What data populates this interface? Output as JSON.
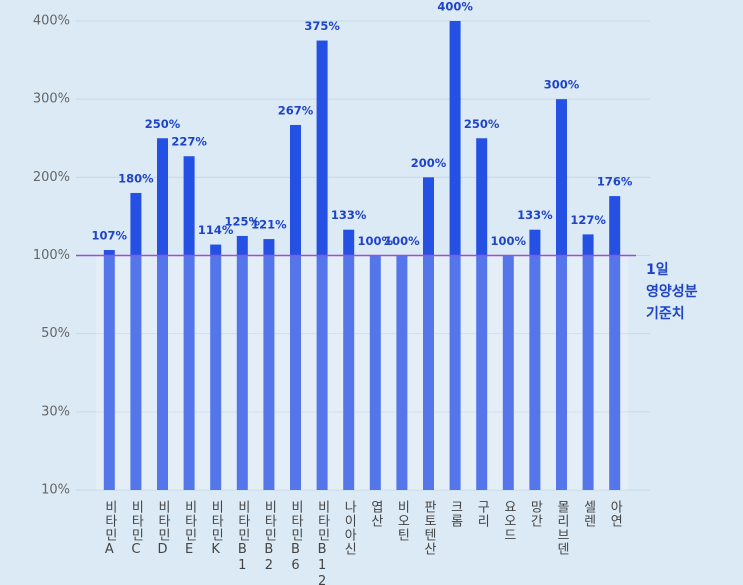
{
  "chart_data": {
    "type": "bar",
    "categories": [
      "비타민A",
      "비타민C",
      "비타민D",
      "비타민E",
      "비타민K",
      "비타민B1",
      "비타민B2",
      "비타민B6",
      "비타민B12",
      "나이아신",
      "엽산",
      "비오틴",
      "판토텐산",
      "크롬",
      "구리",
      "요오드",
      "망간",
      "몰리브덴",
      "셀렌",
      "아연"
    ],
    "values": [
      107,
      180,
      250,
      227,
      114,
      125,
      121,
      267,
      375,
      133,
      100,
      100,
      200,
      400,
      250,
      100,
      133,
      300,
      127,
      176
    ],
    "value_labels": [
      "107%",
      "180%",
      "250%",
      "227%",
      "114%",
      "125%",
      "121%",
      "267%",
      "375%",
      "133%",
      "100%",
      "100%",
      "200%",
      "400%",
      "250%",
      "100%",
      "133%",
      "300%",
      "127%",
      "176%"
    ],
    "color": "#2450e4",
    "ylim": [
      10,
      400
    ],
    "yticks": [
      {
        "value": 10,
        "label": "10%"
      },
      {
        "value": 30,
        "label": "30%"
      },
      {
        "value": 50,
        "label": "50%"
      },
      {
        "value": 100,
        "label": "100%"
      },
      {
        "value": 200,
        "label": "200%"
      },
      {
        "value": 300,
        "label": "300%"
      },
      {
        "value": 400,
        "label": "400%"
      }
    ],
    "grid": true,
    "reference_line": {
      "value": 100,
      "color": "#9b4fd6"
    },
    "annotation": [
      "1일",
      "영양성분",
      "기준치"
    ]
  }
}
